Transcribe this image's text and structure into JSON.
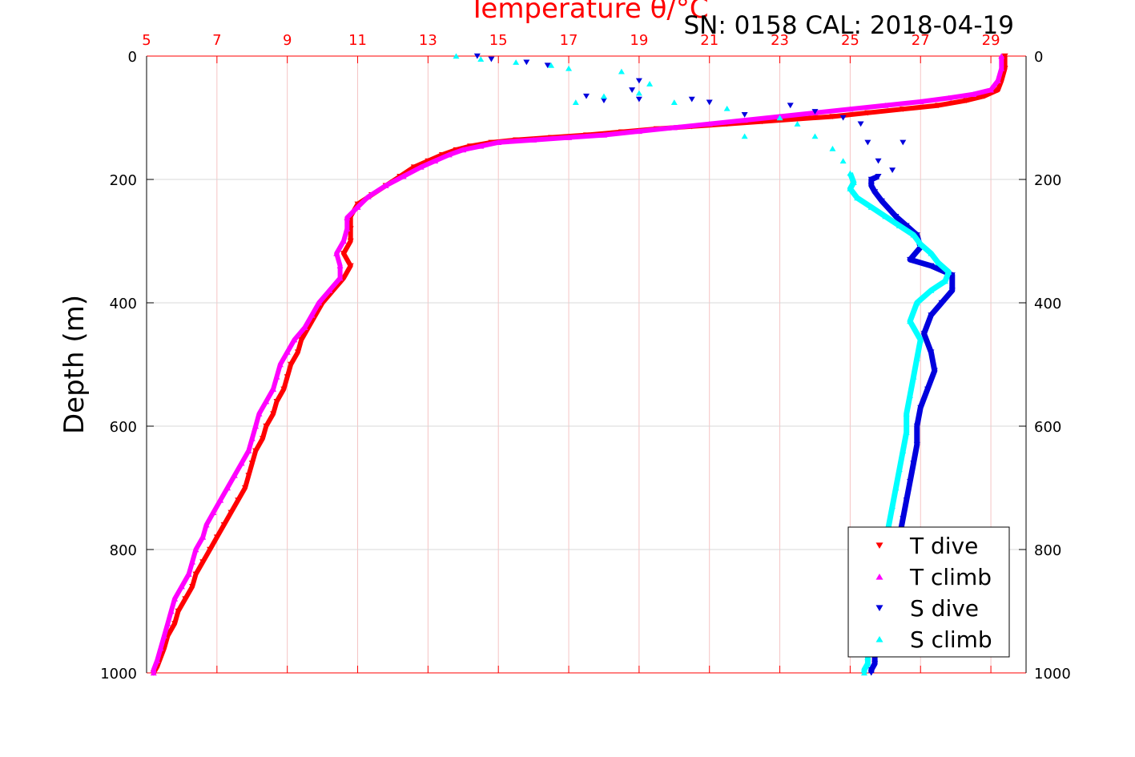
{
  "chart_data": {
    "type": "scatter",
    "title": "Temperature θ/°C",
    "subtitle": "SN: 0158  CAL: 2018-04-19",
    "ylabel": "Depth (m)",
    "x_top_range": [
      5,
      30
    ],
    "x_top_ticks": [
      "5",
      "7",
      "9",
      "11",
      "13",
      "15",
      "17",
      "19",
      "21",
      "23",
      "25",
      "27",
      "29"
    ],
    "y_range": [
      0,
      1000
    ],
    "y_ticks": [
      "0",
      "200",
      "400",
      "600",
      "800",
      "1000"
    ],
    "y_reversed": true,
    "grid": true,
    "legend_position": "bottom-right",
    "colors": {
      "t_dive": "#ff0000",
      "t_climb": "#ff00ff",
      "s_dive": "#0000dd",
      "s_climb": "#00ffff",
      "axis_top": "#ff0000"
    },
    "series": [
      {
        "name": "T dive",
        "marker": "triangle-down",
        "x": [
          29.4,
          29.4,
          29.3,
          29.2,
          28.8,
          28.3,
          27.5,
          26.5,
          25.5,
          24.5,
          23.5,
          22.5,
          21.5,
          20.5,
          19.5,
          18.5,
          17.5,
          16.5,
          15.5,
          14.8,
          14.2,
          13.8,
          13.4,
          13.0,
          12.6,
          12.2,
          11.8,
          11.4,
          11.0,
          10.8,
          10.8,
          10.8,
          10.6,
          10.8,
          10.6,
          10.3,
          10.0,
          9.8,
          9.6,
          9.4,
          9.3,
          9.1,
          9.0,
          8.9,
          8.7,
          8.6,
          8.4,
          8.3,
          8.1,
          8.0,
          7.9,
          7.8,
          7.6,
          7.4,
          7.2,
          7.0,
          6.8,
          6.6,
          6.4,
          6.3,
          6.1,
          5.9,
          5.8,
          5.6,
          5.5,
          5.4,
          5.3,
          5.2
        ],
        "y": [
          0,
          20,
          40,
          55,
          65,
          72,
          80,
          86,
          92,
          98,
          102,
          106,
          110,
          114,
          118,
          123,
          128,
          132,
          136,
          140,
          146,
          152,
          160,
          170,
          180,
          195,
          210,
          225,
          240,
          260,
          280,
          300,
          320,
          340,
          360,
          380,
          400,
          420,
          440,
          460,
          480,
          500,
          520,
          540,
          560,
          580,
          600,
          620,
          640,
          660,
          680,
          700,
          720,
          740,
          760,
          780,
          800,
          820,
          840,
          860,
          880,
          900,
          920,
          940,
          960,
          975,
          990,
          1000
        ]
      },
      {
        "name": "T climb",
        "marker": "triangle-up",
        "x": [
          29.3,
          29.3,
          29.2,
          29.0,
          28.5,
          27.8,
          27.0,
          26.0,
          25.0,
          24.0,
          23.0,
          22.0,
          21.0,
          20.0,
          19.0,
          18.0,
          17.0,
          16.0,
          15.0,
          14.5,
          14.0,
          13.6,
          13.2,
          12.8,
          12.3,
          11.8,
          11.3,
          11.0,
          10.7,
          10.7,
          10.6,
          10.4,
          10.5,
          10.5,
          10.2,
          9.9,
          9.7,
          9.5,
          9.2,
          9.0,
          8.8,
          8.7,
          8.6,
          8.4,
          8.2,
          8.1,
          8.0,
          7.9,
          7.7,
          7.5,
          7.3,
          7.1,
          6.9,
          6.7,
          6.6,
          6.4,
          6.3,
          6.2,
          6.0,
          5.8,
          5.7,
          5.6,
          5.5,
          5.4,
          5.3,
          5.2,
          5.2
        ],
        "y": [
          0,
          20,
          40,
          55,
          62,
          68,
          74,
          80,
          86,
          92,
          98,
          104,
          110,
          116,
          122,
          128,
          132,
          136,
          140,
          146,
          152,
          160,
          170,
          180,
          195,
          210,
          228,
          245,
          262,
          280,
          300,
          320,
          340,
          360,
          380,
          400,
          420,
          440,
          460,
          480,
          500,
          520,
          540,
          560,
          580,
          600,
          620,
          640,
          660,
          680,
          700,
          720,
          740,
          760,
          780,
          800,
          820,
          840,
          860,
          880,
          900,
          920,
          940,
          960,
          980,
          995,
          1000
        ]
      },
      {
        "name": "S dive",
        "marker": "triangle-down",
        "x": [
          14.4,
          14.8,
          15.8,
          16.4,
          17.5,
          18.0,
          18.8,
          19.0,
          19.0,
          20.5,
          21.0,
          22.0,
          23.3,
          24.0,
          24.8,
          25.3,
          25.5,
          25.8,
          26.2,
          26.5,
          25.8,
          25.6,
          25.6,
          25.7,
          25.9,
          26.3,
          26.6,
          26.9,
          27.0,
          26.7,
          27.3,
          27.9,
          27.9,
          27.6,
          27.3,
          27.1,
          27.3,
          27.4,
          27.2,
          27.0,
          26.9,
          26.9,
          26.8,
          26.7,
          26.6,
          26.5,
          26.4,
          26.3,
          26.2,
          26.1,
          26.0,
          25.9,
          25.8,
          25.8,
          25.7,
          25.7,
          25.7,
          25.6,
          25.6
        ],
        "y": [
          0,
          5,
          10,
          15,
          65,
          72,
          55,
          40,
          70,
          70,
          75,
          95,
          80,
          90,
          100,
          110,
          140,
          170,
          185,
          140,
          195,
          200,
          210,
          220,
          235,
          260,
          275,
          290,
          310,
          330,
          340,
          355,
          380,
          400,
          420,
          450,
          480,
          510,
          540,
          570,
          600,
          630,
          660,
          690,
          720,
          750,
          780,
          810,
          840,
          860,
          880,
          900,
          920,
          940,
          960,
          975,
          985,
          995,
          1000
        ]
      },
      {
        "name": "S climb",
        "marker": "triangle-up",
        "x": [
          13.8,
          14.5,
          15.5,
          16.5,
          17.0,
          18.5,
          19.3,
          19.0,
          18.0,
          17.2,
          20.0,
          21.5,
          22.0,
          23.0,
          23.5,
          24.0,
          24.5,
          24.8,
          25.0,
          25.1,
          25.0,
          25.2,
          25.6,
          26.0,
          26.4,
          26.8,
          27.0,
          27.3,
          27.5,
          27.8,
          27.7,
          27.3,
          26.9,
          26.7,
          27.0,
          26.9,
          26.8,
          26.7,
          26.6,
          26.6,
          26.5,
          26.4,
          26.3,
          26.2,
          26.1,
          26.0,
          25.9,
          25.9,
          25.8,
          25.7,
          25.7,
          25.6,
          25.5,
          25.5,
          25.5,
          25.4,
          25.4
        ],
        "y": [
          0,
          5,
          10,
          15,
          20,
          25,
          45,
          60,
          65,
          75,
          75,
          85,
          130,
          100,
          110,
          130,
          150,
          170,
          190,
          205,
          215,
          230,
          245,
          260,
          275,
          290,
          305,
          320,
          335,
          350,
          365,
          380,
          400,
          430,
          460,
          490,
          520,
          550,
          580,
          610,
          640,
          670,
          700,
          730,
          760,
          790,
          820,
          850,
          880,
          900,
          920,
          940,
          960,
          975,
          985,
          995,
          1000
        ]
      }
    ]
  }
}
